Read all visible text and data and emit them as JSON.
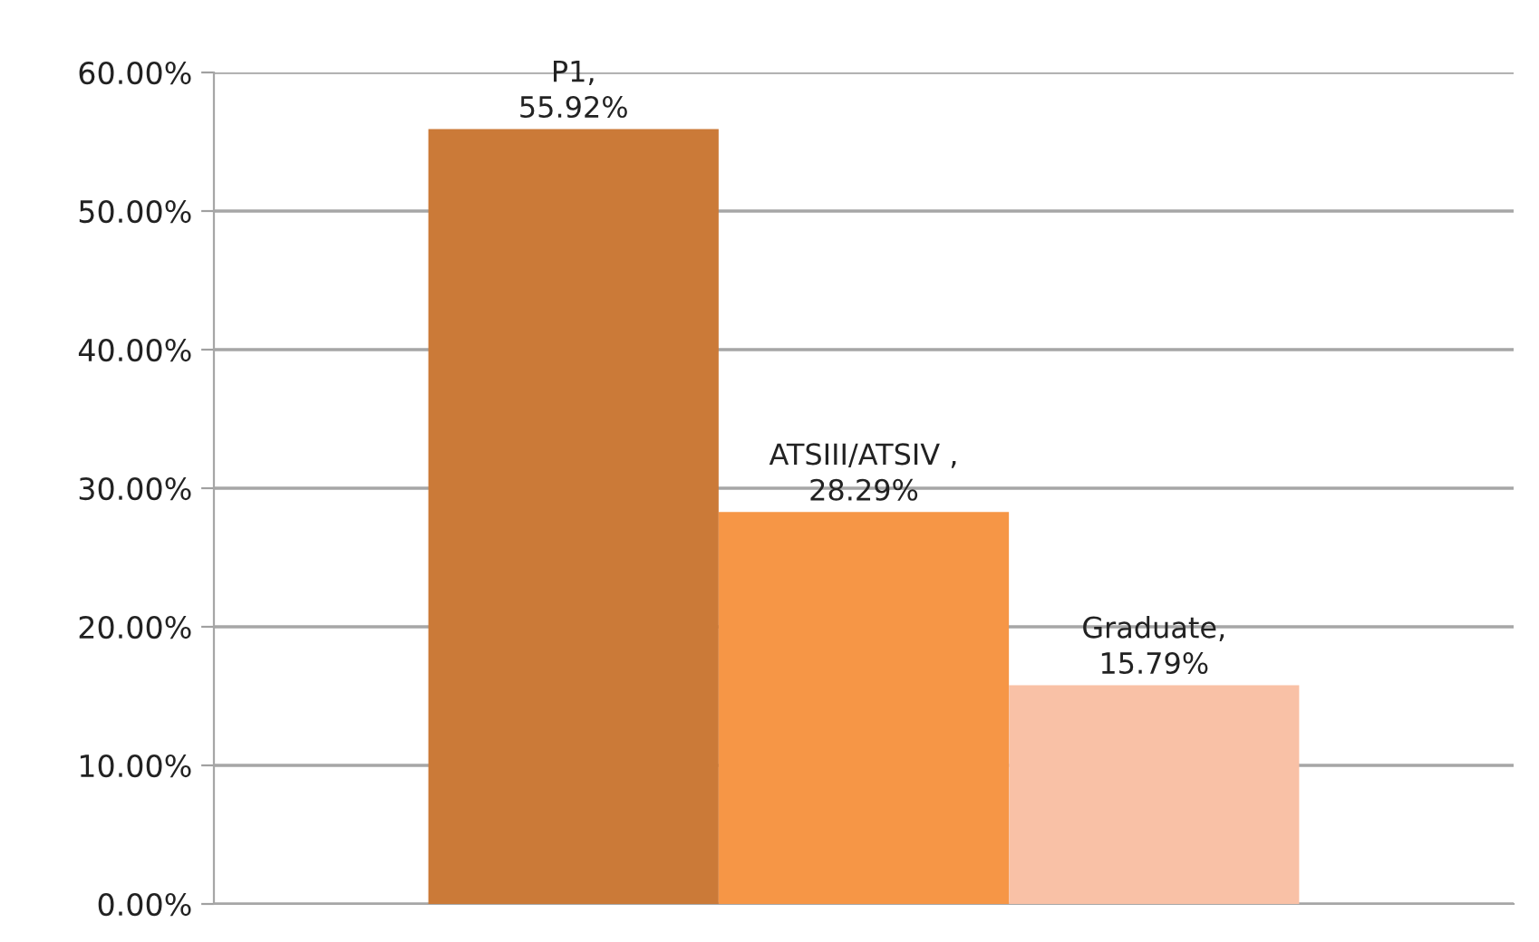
{
  "chart_data": {
    "type": "bar",
    "categories": [
      null
    ],
    "series": [
      {
        "color": "#cb7a38",
        "values": [
          55.92
        ],
        "value_labels": [
          "P1,\n55.92%"
        ]
      },
      {
        "color": "#f69646",
        "values": [
          28.29
        ],
        "value_labels": [
          "ATSIII/ATSIV ,\n28.29%"
        ]
      },
      {
        "color": "#f9c1a6",
        "values": [
          15.79
        ],
        "value_labels": [
          "Graduate,\n15.79%"
        ]
      }
    ],
    "ylim": [
      0,
      60
    ],
    "yticks": [
      {
        "value": 0,
        "label": "0.00%"
      },
      {
        "value": 10,
        "label": "10.00%"
      },
      {
        "value": 20,
        "label": "20.00%"
      },
      {
        "value": 30,
        "label": "30.00%"
      },
      {
        "value": 40,
        "label": "40.00%"
      },
      {
        "value": 50,
        "label": "50.00%"
      },
      {
        "value": 60,
        "label": "60.00%"
      }
    ],
    "grid": "y",
    "legend": false
  }
}
